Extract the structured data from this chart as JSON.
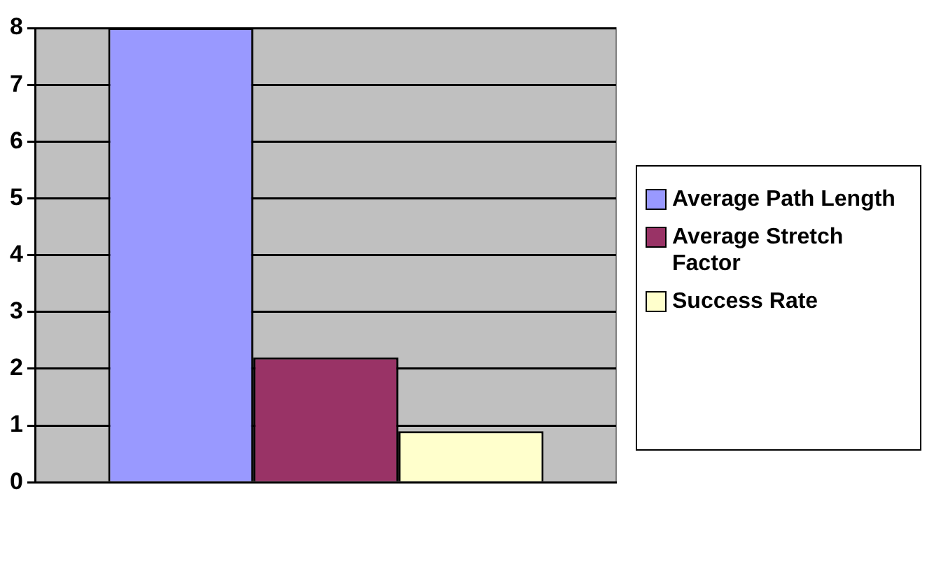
{
  "chart_data": {
    "type": "bar",
    "categories": [
      null
    ],
    "series": [
      {
        "name": "Average Path Length",
        "color": "#9999ff",
        "values": [
          8
        ]
      },
      {
        "name": "Average Stretch Factor",
        "color": "#993366",
        "values": [
          2.2
        ]
      },
      {
        "name": "Success Rate",
        "color": "#ffffcc",
        "values": [
          0.9
        ]
      }
    ],
    "ylim": [
      0,
      8
    ],
    "yticks": [
      0,
      1,
      2,
      3,
      4,
      5,
      6,
      7,
      8
    ],
    "grid": "y",
    "legend": "right"
  }
}
